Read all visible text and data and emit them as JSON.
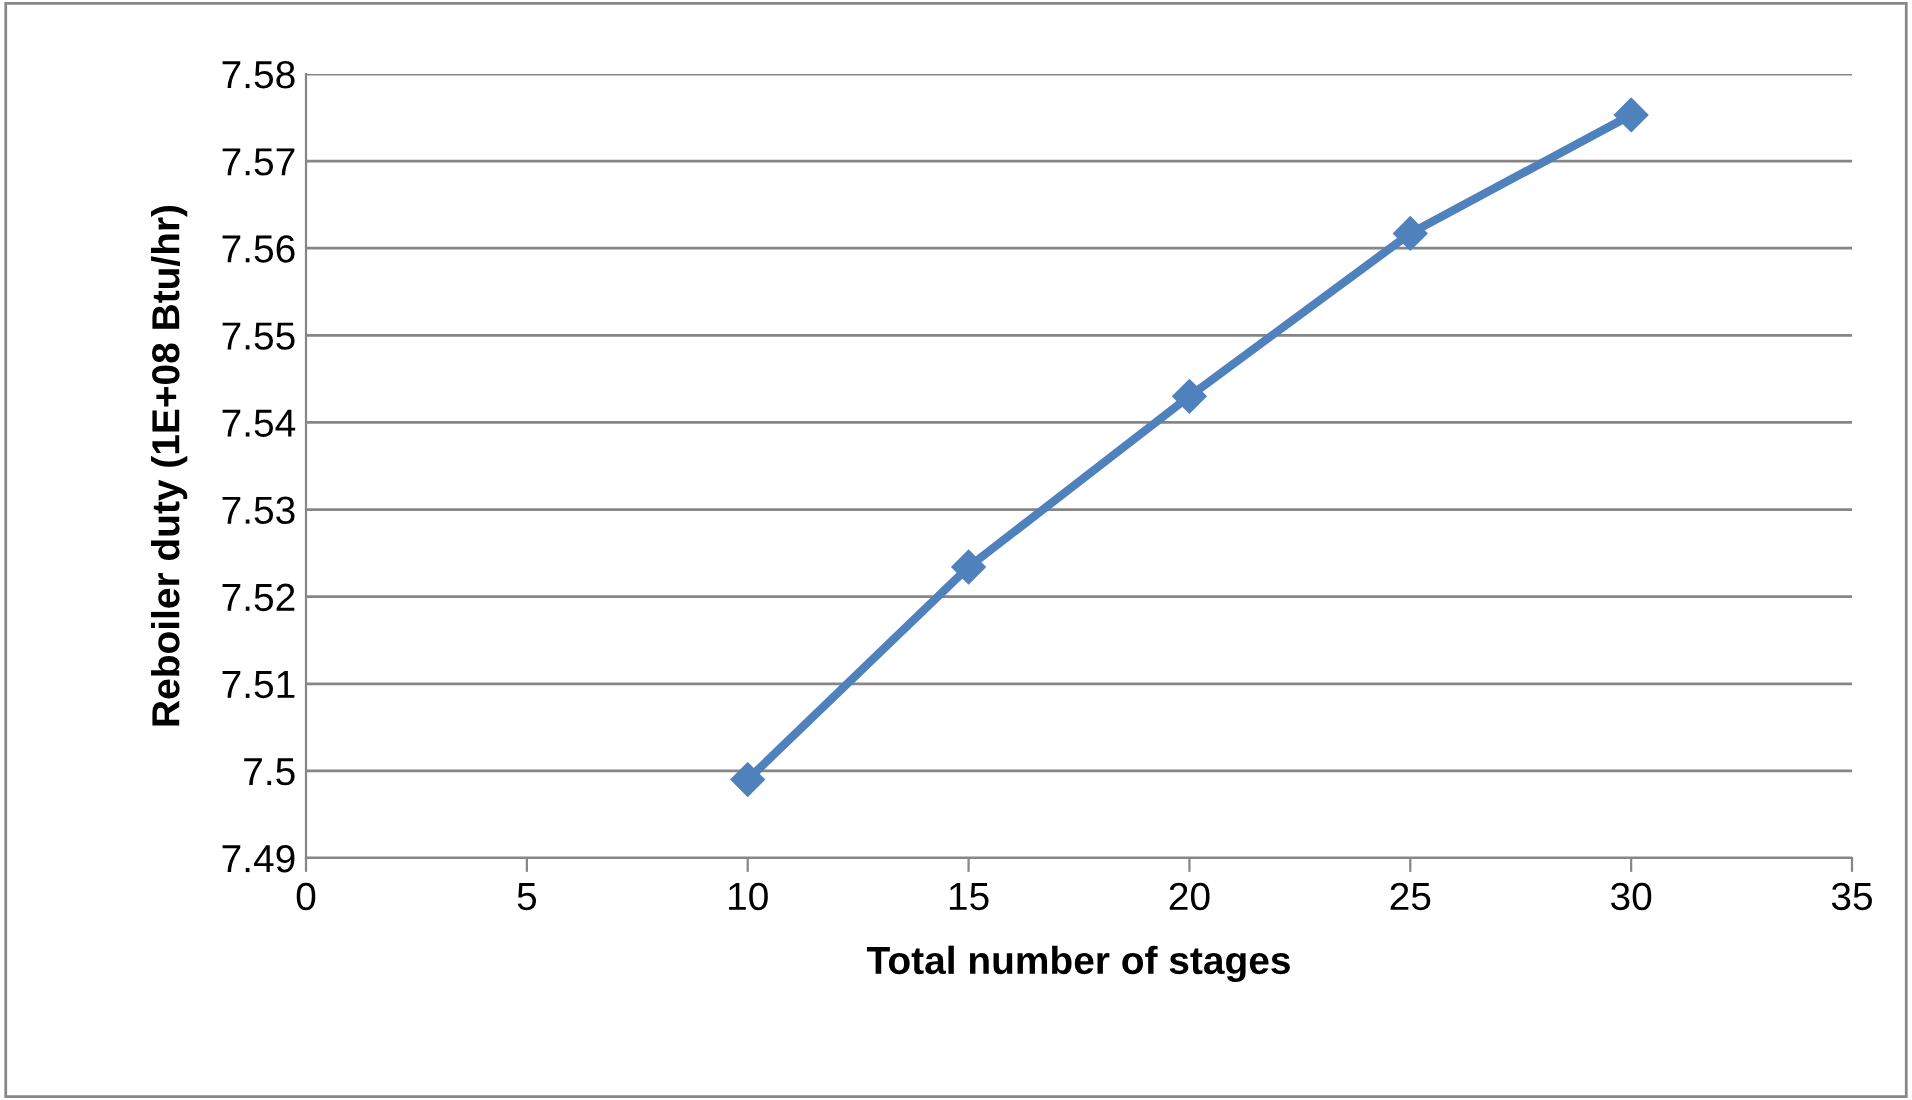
{
  "chart_data": {
    "type": "line",
    "xlabel": "Total number of stages",
    "ylabel": "Reboiler duty (1E+08 Btu/hr)",
    "x": [
      10,
      15,
      20,
      25,
      30
    ],
    "series": [
      {
        "color": "#4f81bd",
        "values": [
          7.499,
          7.5234,
          7.543,
          7.5617,
          7.5753
        ]
      }
    ],
    "xlim": [
      0,
      35
    ],
    "xticks": [
      0,
      5,
      10,
      15,
      20,
      25,
      30,
      35
    ],
    "ylim": [
      7.49,
      7.58
    ],
    "yticks": [
      {
        "value": 7.49,
        "label": "7.49"
      },
      {
        "value": 7.5,
        "label": "7.5"
      },
      {
        "value": 7.51,
        "label": "7.51"
      },
      {
        "value": 7.52,
        "label": "7.52"
      },
      {
        "value": 7.53,
        "label": "7.53"
      },
      {
        "value": 7.54,
        "label": "7.54"
      },
      {
        "value": 7.55,
        "label": "7.55"
      },
      {
        "value": 7.56,
        "label": "7.56"
      },
      {
        "value": 7.57,
        "label": "7.57"
      },
      {
        "value": 7.58,
        "label": "7.58"
      }
    ],
    "grid": "y",
    "marker": "diamond",
    "line_style": "solid",
    "legend": false
  }
}
